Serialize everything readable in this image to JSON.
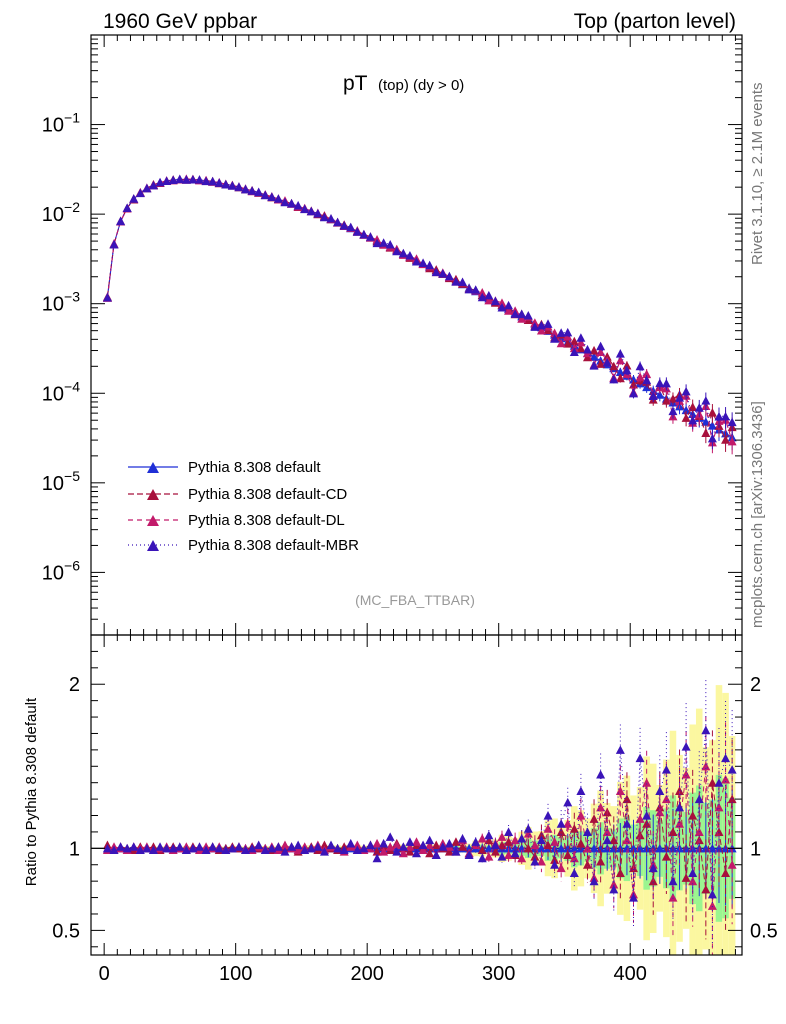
{
  "header": {
    "left": "1960 GeV ppbar",
    "right": "Top (parton level)"
  },
  "side_labels": {
    "rivet": "Rivet 3.1.10, ≥ 2.1M events",
    "mcplots": "mcplots.cern.ch [arXiv:1306.3436]"
  },
  "chart_data": {
    "type": "line",
    "title_main": "pT",
    "title_sub": "(top) (dy > 0)",
    "analysis_tag": "(MC_FBA_TTBAR)",
    "xlabel": "",
    "ylabel_ratio": "Ratio to Pythia 8.308 default",
    "xlim": [
      -10,
      485
    ],
    "x_ticks": [
      "0",
      "100",
      "200",
      "300",
      "400"
    ],
    "y_main_scale": "log",
    "y_main_lim": [
      2e-07,
      1.0
    ],
    "y_main_ticks": [
      "10^-1",
      "10^-2",
      "10^-3",
      "10^-4",
      "10^-5",
      "10^-6"
    ],
    "y_ratio_lim": [
      0.35,
      2.3
    ],
    "y_ratio_ticks": [
      "2",
      "1",
      "0.5"
    ],
    "legend_position": "bottom-left",
    "series": [
      {
        "name": "Pythia 8.308 default",
        "color": "#1f2fd6",
        "dash": "",
        "ratio_offsets": [
          0.0,
          0.0,
          0.0,
          0.0,
          0.0,
          0.0,
          0.0,
          0.0,
          0.0,
          0.0,
          0.0,
          0.0,
          0.0,
          0.0,
          0.0,
          0.0,
          0.0,
          0.0,
          0.0,
          0.0,
          0.0,
          0.0,
          0.0,
          0.0,
          0.0,
          0.0,
          0.0,
          0.0,
          0.0,
          0.0,
          0.0,
          0.0,
          0.0,
          0.0,
          0.0,
          0.0,
          0.0,
          0.0,
          0.0,
          0.0,
          0.0,
          0.0,
          0.0,
          0.0,
          0.0,
          0.0,
          0.0,
          0.0,
          0.0,
          0.0,
          0.0,
          0.0,
          0.0,
          0.0,
          0.0,
          0.0,
          0.0,
          0.0,
          0.0,
          0.0,
          0.0,
          0.0,
          0.0,
          0.0,
          0.0,
          0.0,
          0.0,
          0.0,
          0.0,
          0.0,
          0.0,
          0.0,
          0.0,
          0.0,
          0.0,
          0.0,
          0.0,
          0.0,
          0.0,
          0.0,
          0.0,
          0.0,
          0.0,
          0.0,
          0.0,
          0.0,
          0.0,
          0.0,
          0.0,
          0.0,
          0.0,
          0.0,
          0.0,
          0.0,
          0.0,
          0.0
        ]
      },
      {
        "name": "Pythia 8.308 default-CD",
        "color": "#a8103c",
        "dash": "6,3",
        "ratio_offsets": [
          0.02,
          -0.01,
          0.01,
          0.0,
          -0.01,
          0.01,
          0.0,
          0.01,
          -0.01,
          0.0,
          0.01,
          0.0,
          -0.01,
          0.01,
          0.0,
          0.0,
          0.01,
          -0.01,
          0.0,
          0.01,
          0.0,
          -0.01,
          0.01,
          0.0,
          0.0,
          -0.01,
          0.01,
          0.0,
          0.01,
          -0.02,
          0.0,
          0.01,
          -0.01,
          0.02,
          0.0,
          -0.01,
          0.01,
          0.02,
          -0.01,
          0.0,
          0.02,
          -0.02,
          0.01,
          -0.01,
          0.03,
          0.0,
          -0.02,
          0.02,
          0.01,
          -0.03,
          0.02,
          0.0,
          -0.02,
          0.04,
          0.01,
          -0.03,
          0.03,
          -0.01,
          0.05,
          -0.02,
          0.02,
          0.04,
          -0.04,
          0.06,
          0.0,
          -0.05,
          0.08,
          0.02,
          -0.07,
          0.1,
          -0.04,
          0.12,
          0.03,
          -0.1,
          0.18,
          -0.08,
          0.22,
          0.05,
          -0.15,
          0.3,
          -0.12,
          0.08,
          0.15,
          -0.2,
          0.25,
          -0.05,
          0.1,
          0.35,
          -0.18,
          0.2,
          0.05,
          -0.25,
          0.4,
          0.1,
          -0.15,
          0.3
        ]
      },
      {
        "name": "Pythia 8.308 default-DL",
        "color": "#c21a6a",
        "dash": "5,4",
        "ratio_offsets": [
          -0.01,
          0.01,
          0.0,
          -0.01,
          0.01,
          0.0,
          0.01,
          -0.01,
          0.0,
          0.01,
          -0.01,
          0.0,
          0.01,
          0.0,
          -0.01,
          0.01,
          0.0,
          0.01,
          -0.01,
          0.0,
          0.01,
          0.0,
          -0.01,
          0.01,
          0.0,
          0.01,
          -0.01,
          0.02,
          0.0,
          -0.01,
          0.01,
          0.0,
          0.02,
          -0.01,
          0.01,
          0.0,
          -0.02,
          0.01,
          0.02,
          -0.01,
          0.0,
          0.03,
          -0.02,
          0.01,
          0.02,
          -0.03,
          0.01,
          0.04,
          -0.01,
          0.02,
          -0.04,
          0.03,
          0.01,
          -0.02,
          0.05,
          -0.03,
          0.02,
          0.06,
          -0.05,
          0.03,
          0.07,
          -0.04,
          0.05,
          -0.06,
          0.09,
          0.02,
          -0.08,
          0.12,
          0.04,
          -0.12,
          0.15,
          -0.06,
          0.2,
          0.0,
          -0.18,
          0.25,
          0.1,
          -0.22,
          0.35,
          0.05,
          -0.28,
          0.18,
          0.4,
          -0.1,
          0.22,
          0.3,
          -0.3,
          0.15,
          0.45,
          -0.2,
          0.1,
          0.5,
          -0.35,
          0.25,
          0.42,
          -0.1
        ]
      },
      {
        "name": "Pythia 8.308 default-MBR",
        "color": "#3a14b8",
        "dash": "1,3",
        "ratio_offsets": [
          0.0,
          -0.01,
          0.01,
          0.0,
          0.01,
          -0.01,
          0.0,
          -0.01,
          0.01,
          0.0,
          0.0,
          0.01,
          -0.01,
          0.0,
          0.01,
          -0.01,
          0.01,
          0.0,
          -0.01,
          0.0,
          0.01,
          -0.01,
          0.0,
          0.02,
          -0.01,
          0.0,
          0.01,
          -0.02,
          0.01,
          0.02,
          -0.01,
          0.0,
          0.01,
          -0.02,
          0.02,
          0.0,
          -0.01,
          0.03,
          -0.01,
          0.0,
          0.02,
          -0.06,
          0.03,
          0.07,
          -0.02,
          0.01,
          0.04,
          -0.03,
          0.02,
          0.05,
          -0.04,
          0.01,
          0.03,
          -0.02,
          0.06,
          -0.04,
          0.04,
          -0.06,
          0.08,
          0.02,
          -0.05,
          0.1,
          -0.03,
          0.06,
          0.12,
          -0.08,
          0.05,
          0.2,
          -0.1,
          0.15,
          0.28,
          -0.15,
          0.35,
          0.1,
          -0.2,
          0.45,
          0.05,
          -0.25,
          0.6,
          0.15,
          -0.3,
          0.55,
          0.2,
          -0.12,
          0.35,
          0.48,
          -0.2,
          0.25,
          0.62,
          -0.15,
          0.3,
          0.72,
          -0.28,
          0.4,
          0.55,
          0.48
        ]
      }
    ]
  }
}
